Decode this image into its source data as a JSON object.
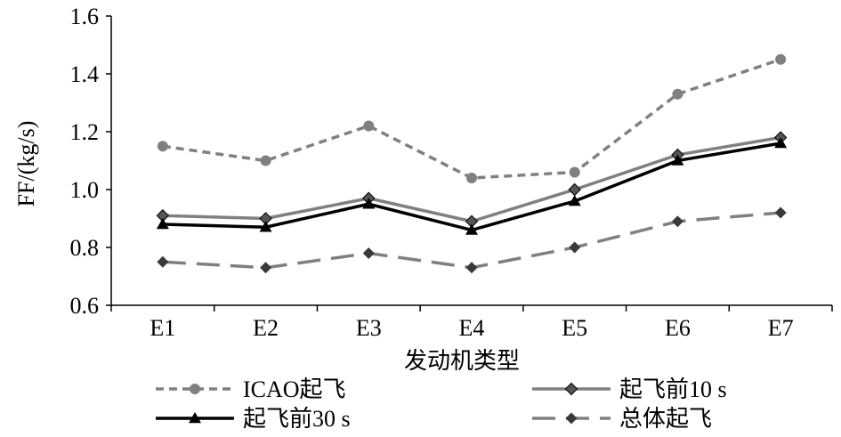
{
  "chart_data": {
    "type": "line",
    "categories": [
      "E1",
      "E2",
      "E3",
      "E4",
      "E5",
      "E6",
      "E7"
    ],
    "xlabel": "发动机类型",
    "ylabel": "FF/(kg/s)",
    "ylim": [
      0.6,
      1.6
    ],
    "yticks": [
      "0.6",
      "0.8",
      "1.0",
      "1.2",
      "1.4",
      "1.6"
    ],
    "grid": false,
    "legend_position": "bottom",
    "series": [
      {
        "name": "ICAO起飞",
        "values": [
          1.15,
          1.1,
          1.22,
          1.04,
          1.06,
          1.33,
          1.45
        ],
        "color": "#808080",
        "dash": "dotted",
        "marker": "circle"
      },
      {
        "name": "起飞前10 s",
        "values": [
          0.91,
          0.9,
          0.97,
          0.89,
          1.0,
          1.12,
          1.18
        ],
        "color": "#808080",
        "dash": "solid",
        "marker": "diamond"
      },
      {
        "name": "起飞前30 s",
        "values": [
          0.88,
          0.87,
          0.95,
          0.86,
          0.96,
          1.1,
          1.16
        ],
        "color": "#000000",
        "dash": "solid",
        "marker": "triangle"
      },
      {
        "name": "总体起飞",
        "values": [
          0.75,
          0.73,
          0.78,
          0.73,
          0.8,
          0.89,
          0.92
        ],
        "color": "#808080",
        "dash": "longdash",
        "marker": "diamond-small"
      }
    ]
  }
}
